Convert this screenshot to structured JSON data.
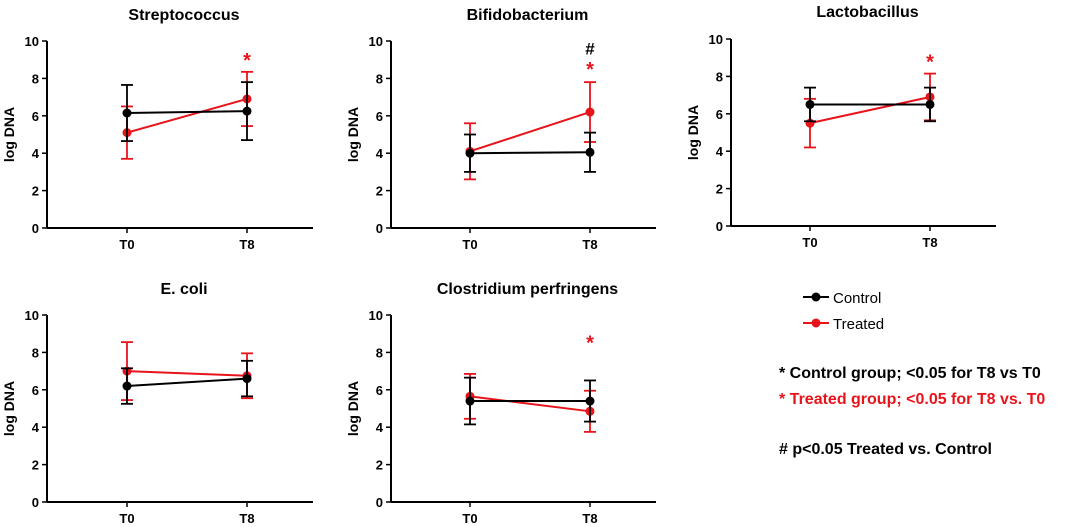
{
  "chart_data": [
    {
      "type": "line",
      "title": "Streptococcus",
      "xlabel": "",
      "ylabel": "log DNA",
      "categories": [
        "T0",
        "T8"
      ],
      "ylim": [
        0,
        10
      ],
      "yticks": [
        "0",
        "2",
        "4",
        "6",
        "8",
        "10"
      ],
      "series": [
        {
          "name": "Control",
          "values": [
            6.15,
            6.25
          ],
          "err": [
            1.5,
            1.55
          ]
        },
        {
          "name": "Treated",
          "values": [
            5.1,
            6.9
          ],
          "err": [
            1.4,
            1.45
          ]
        }
      ],
      "annotations": [
        {
          "text": "*",
          "category": "T8",
          "y": 9.15,
          "color": "red"
        }
      ]
    },
    {
      "type": "line",
      "title": "Bifidobacterium",
      "xlabel": "",
      "ylabel": "log DNA",
      "categories": [
        "T0",
        "T8"
      ],
      "ylim": [
        0,
        10
      ],
      "yticks": [
        "0",
        "2",
        "4",
        "6",
        "8",
        "10"
      ],
      "series": [
        {
          "name": "Control",
          "values": [
            4.0,
            4.05
          ],
          "err": [
            1.0,
            1.05
          ]
        },
        {
          "name": "Treated",
          "values": [
            4.1,
            6.2
          ],
          "err": [
            1.5,
            1.6
          ]
        }
      ],
      "annotations": [
        {
          "text": "#",
          "category": "T8",
          "y": 9.6,
          "color": "black"
        },
        {
          "text": "*",
          "category": "T8",
          "y": 8.65,
          "color": "red"
        }
      ]
    },
    {
      "type": "line",
      "title": "Lactobacillus",
      "xlabel": "",
      "ylabel": "log DNA",
      "categories": [
        "T0",
        "T8"
      ],
      "ylim": [
        0,
        10
      ],
      "yticks": [
        "0",
        "2",
        "4",
        "6",
        "8",
        "10"
      ],
      "series": [
        {
          "name": "Control",
          "values": [
            6.5,
            6.5
          ],
          "err": [
            0.9,
            0.9
          ]
        },
        {
          "name": "Treated",
          "values": [
            5.5,
            6.9
          ],
          "err": [
            1.3,
            1.25
          ]
        }
      ],
      "annotations": [
        {
          "text": "*",
          "category": "T8",
          "y": 8.95,
          "color": "red"
        }
      ]
    },
    {
      "type": "line",
      "title": "E. coli",
      "xlabel": "",
      "ylabel": "log DNA",
      "categories": [
        "T0",
        "T8"
      ],
      "ylim": [
        0,
        10
      ],
      "yticks": [
        "0",
        "2",
        "4",
        "6",
        "8",
        "10"
      ],
      "series": [
        {
          "name": "Control",
          "values": [
            6.2,
            6.6
          ],
          "err": [
            0.95,
            0.95
          ]
        },
        {
          "name": "Treated",
          "values": [
            7.0,
            6.75
          ],
          "err": [
            1.55,
            1.2
          ]
        }
      ],
      "annotations": []
    },
    {
      "type": "line",
      "title": "Clostridium perfringens",
      "xlabel": "",
      "ylabel": "log DNA",
      "categories": [
        "T0",
        "T8"
      ],
      "ylim": [
        0,
        10
      ],
      "yticks": [
        "0",
        "2",
        "4",
        "6",
        "8",
        "10"
      ],
      "series": [
        {
          "name": "Control",
          "values": [
            5.4,
            5.4
          ],
          "err": [
            1.25,
            1.1
          ]
        },
        {
          "name": "Treated",
          "values": [
            5.65,
            4.85
          ],
          "err": [
            1.2,
            1.1
          ]
        }
      ],
      "annotations": [
        {
          "text": "*",
          "category": "T8",
          "y": 8.7,
          "color": "red"
        }
      ]
    }
  ],
  "legend": {
    "placement": "right",
    "items": [
      {
        "name": "Control",
        "color": "#000000"
      },
      {
        "name": "Treated",
        "color": "#e8141b"
      }
    ]
  },
  "notes": [
    {
      "text": "* Control group; <0.05 for T8 vs T0",
      "color": "#000000"
    },
    {
      "text": "* Treated group; <0.05 for T8 vs. T0",
      "color": "#e8141b"
    },
    {
      "text": "# p<0.05 Treated vs. Control",
      "color": "#000000"
    }
  ],
  "colors": {
    "control": "#000000",
    "treated": "#e8141b"
  }
}
